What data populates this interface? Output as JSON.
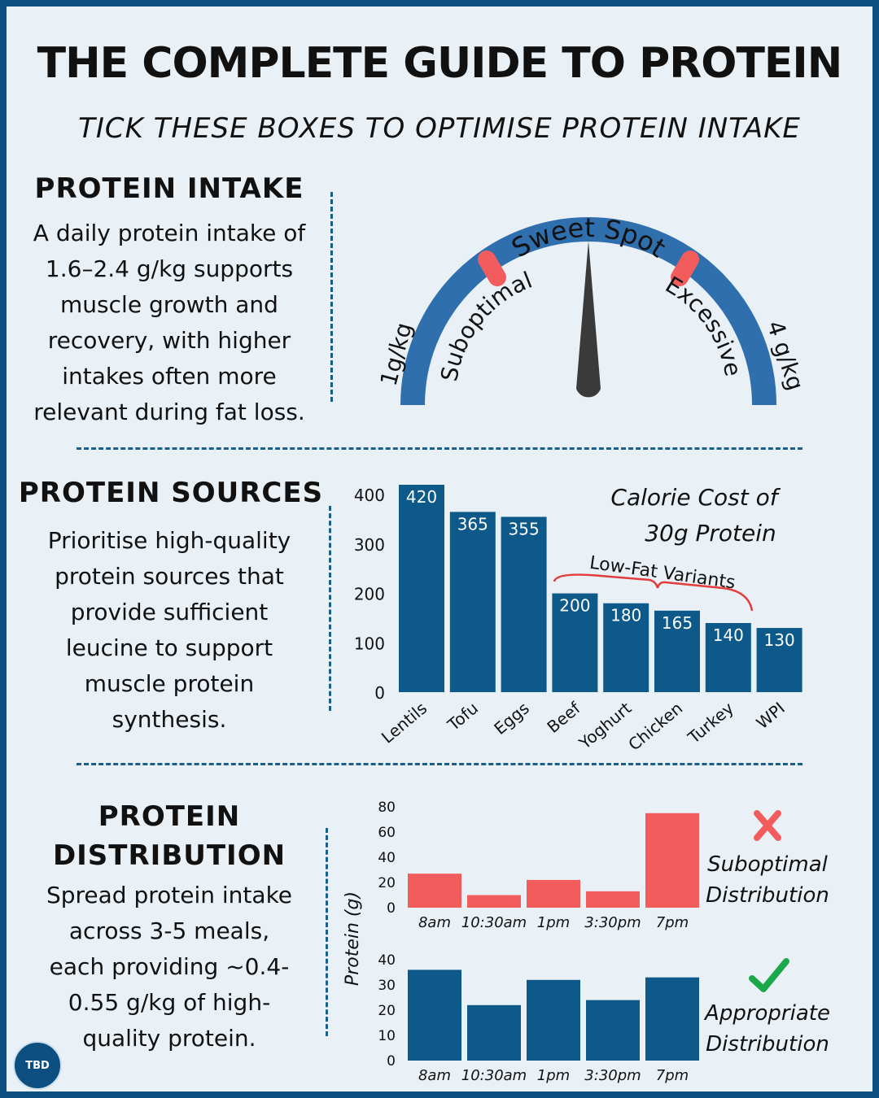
{
  "header": {
    "title": "THE COMPLETE GUIDE TO PROTEIN",
    "subtitle": "TICK THESE BOXES TO OPTIMISE PROTEIN INTAKE"
  },
  "intake": {
    "heading": "PROTEIN INTAKE",
    "body_lines": [
      "A daily protein intake of",
      "1.6–2.4 g/kg supports",
      "muscle growth and",
      "recovery, with higher",
      "intakes often more",
      "relevant during fat loss."
    ],
    "gauge": {
      "top_label": "Sweet Spot",
      "left_label": "Suboptimal",
      "right_label": "Excessive",
      "min_label": "1g/kg",
      "max_label": "4 g/kg",
      "arc_color": "#2f6fae",
      "marker_color": "#f25c5c",
      "needle_color": "#3a3a3a"
    }
  },
  "sources": {
    "heading": "PROTEIN SOURCES",
    "body_lines": [
      "Prioritise high-quality",
      "protein sources that",
      "provide sufficient",
      "leucine to support",
      "muscle protein",
      "synthesis."
    ],
    "annotation": "Low-Fat Variants"
  },
  "distribution": {
    "heading_lines": [
      "PROTEIN",
      "DISTRIBUTION"
    ],
    "body_lines": [
      "Spread protein intake",
      "across 3-5 meals,",
      "each providing ~0.4-",
      "0.55 g/kg of high-",
      "quality protein."
    ],
    "ylabel": "Protein (g)",
    "bad_label_lines": [
      "Suboptimal",
      "Distribution"
    ],
    "good_label_lines": [
      "Appropriate",
      "Distribution"
    ],
    "bad_icon": "cross-icon",
    "good_icon": "check-icon"
  },
  "logo": {
    "text": "TBD"
  },
  "colors": {
    "bar_blue": "#0d5a8a",
    "bar_red": "#f25c5c",
    "accent": "#1a5f8a",
    "check_green": "#1aa84a"
  },
  "chart_data": [
    {
      "type": "bar",
      "title_lines": [
        "Calorie Cost of",
        "30g Protein"
      ],
      "categories": [
        "Lentils",
        "Tofu",
        "Eggs",
        "Beef",
        "Yoghurt",
        "Chicken",
        "Turkey",
        "WPI"
      ],
      "values": [
        420,
        365,
        355,
        200,
        180,
        165,
        140,
        130
      ],
      "yticks": [
        0,
        100,
        200,
        300,
        400
      ],
      "ylim": [
        0,
        420
      ],
      "grid": false
    },
    {
      "type": "bar",
      "categories": [
        "8am",
        "10:30am",
        "1pm",
        "3:30pm",
        "7pm"
      ],
      "values": [
        27,
        10,
        22,
        13,
        75
      ],
      "yticks": [
        0,
        20,
        40,
        60,
        80
      ],
      "ylim": [
        0,
        80
      ],
      "grid": false
    },
    {
      "type": "bar",
      "categories": [
        "8am",
        "10:30am",
        "1pm",
        "3:30pm",
        "7pm"
      ],
      "values": [
        36,
        22,
        32,
        24,
        33
      ],
      "yticks": [
        0,
        10,
        20,
        30,
        40
      ],
      "ylim": [
        0,
        40
      ],
      "grid": false
    }
  ]
}
